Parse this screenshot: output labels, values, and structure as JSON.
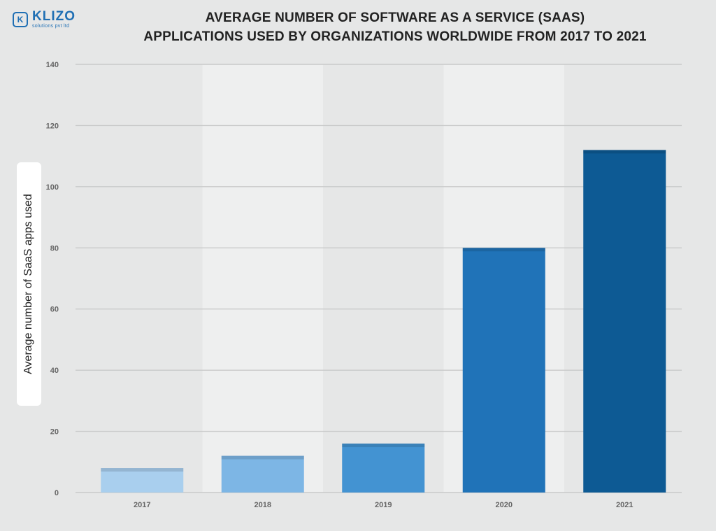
{
  "logo": {
    "mark": "K",
    "name": "KLIZO",
    "tagline": "solutions pvt ltd"
  },
  "chart_data": {
    "type": "bar",
    "title_line1": "AVERAGE NUMBER OF SOFTWARE AS A SERVICE (SAAS)",
    "title_line2": "APPLICATIONS USED BY ORGANIZATIONS WORLDWIDE FROM 2017 TO 2021",
    "xlabel": "",
    "ylabel": "Average number of SaaS apps used",
    "categories": [
      "2017",
      "2018",
      "2019",
      "2020",
      "2021"
    ],
    "values": [
      8,
      12,
      16,
      80,
      112
    ],
    "ylim": [
      0,
      140
    ],
    "yticks": [
      "0",
      "20",
      "40",
      "60",
      "80",
      "100",
      "120",
      "140"
    ],
    "grid": true,
    "bar_colors": [
      "#a9cfee",
      "#7db6e5",
      "#4393d2",
      "#2073b8",
      "#0d5a94"
    ],
    "band_colors": [
      "#e6e7e7",
      "#eeefef"
    ]
  }
}
